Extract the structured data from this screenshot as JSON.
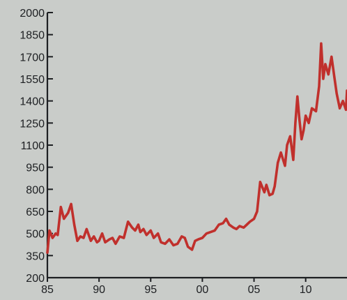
{
  "chart_data": {
    "type": "line",
    "title": "",
    "xlabel": "",
    "ylabel": "",
    "xlim": [
      1985,
      2014
    ],
    "ylim": [
      200,
      2000
    ],
    "grid": false,
    "line_color": "#c0302c",
    "y_ticks": [
      200,
      350,
      500,
      650,
      800,
      950,
      1100,
      1250,
      1400,
      1550,
      1700,
      1850,
      2000
    ],
    "y_tick_labels": [
      "200",
      "350",
      "500",
      "650",
      "800",
      "950",
      "1100",
      "1250",
      "1400",
      "1550",
      "1700",
      "1850",
      "2000"
    ],
    "x_ticks": [
      1985,
      1990,
      1995,
      2000,
      2005,
      2010
    ],
    "x_tick_labels": [
      "85",
      "90",
      "95",
      "00",
      "05",
      "10"
    ],
    "series": [
      {
        "x": [
          1985.0,
          1985.2,
          1985.5,
          1985.8,
          1986.0,
          1986.3,
          1986.6,
          1987.0,
          1987.3,
          1987.6,
          1987.9,
          1988.2,
          1988.5,
          1988.8,
          1989.2,
          1989.5,
          1989.8,
          1990.0,
          1990.3,
          1990.6,
          1991.0,
          1991.3,
          1991.6,
          1992.0,
          1992.4,
          1992.8,
          1993.2,
          1993.5,
          1993.8,
          1994.0,
          1994.3,
          1994.6,
          1995.0,
          1995.3,
          1995.7,
          1996.0,
          1996.4,
          1996.8,
          1997.2,
          1997.6,
          1998.0,
          1998.3,
          1998.6,
          1999.0,
          1999.3,
          1999.6,
          2000.0,
          2000.4,
          2000.8,
          2001.2,
          2001.6,
          2002.0,
          2002.3,
          2002.6,
          2003.0,
          2003.3,
          2003.6,
          2004.0,
          2004.3,
          2004.6,
          2005.0,
          2005.3,
          2005.6,
          2006.0,
          2006.2,
          2006.5,
          2006.8,
          2007.0,
          2007.3,
          2007.6,
          2008.0,
          2008.2,
          2008.5,
          2008.8,
          2009.0,
          2009.2,
          2009.4,
          2009.6,
          2009.8,
          2010.0,
          2010.3,
          2010.6,
          2011.0,
          2011.3,
          2011.5,
          2011.7,
          2011.9,
          2012.2,
          2012.5,
          2012.8,
          2013.0,
          2013.3,
          2013.6,
          2013.9,
          2014.0
        ],
        "y": [
          370,
          520,
          470,
          500,
          490,
          680,
          600,
          640,
          700,
          560,
          450,
          480,
          470,
          530,
          450,
          480,
          440,
          450,
          500,
          440,
          460,
          470,
          430,
          480,
          470,
          580,
          540,
          520,
          560,
          510,
          530,
          490,
          520,
          470,
          500,
          440,
          430,
          460,
          420,
          430,
          480,
          470,
          410,
          390,
          450,
          460,
          470,
          500,
          510,
          520,
          560,
          570,
          600,
          560,
          540,
          530,
          550,
          540,
          560,
          580,
          600,
          650,
          850,
          780,
          830,
          760,
          770,
          820,
          980,
          1050,
          960,
          1100,
          1160,
          1000,
          1250,
          1430,
          1270,
          1140,
          1200,
          1300,
          1250,
          1350,
          1330,
          1500,
          1790,
          1550,
          1650,
          1580,
          1700,
          1550,
          1450,
          1350,
          1400,
          1340,
          1470
        ]
      }
    ]
  }
}
